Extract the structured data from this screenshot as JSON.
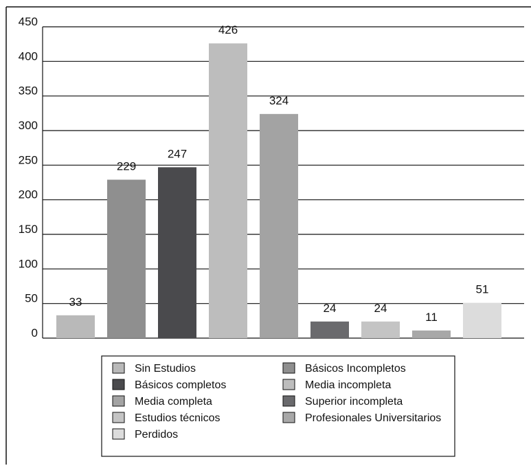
{
  "chart_data": {
    "type": "bar",
    "title": "",
    "xlabel": "",
    "ylabel": "",
    "ylim": [
      0,
      450
    ],
    "yticks": [
      0,
      50,
      100,
      150,
      200,
      250,
      300,
      350,
      400,
      450
    ],
    "grid": true,
    "legend_position": "bottom",
    "categories": [
      "Sin Estudios",
      "Básicos Incompletos",
      "Básicos completos",
      "Media incompleta",
      "Media completa",
      "Superior incompleta",
      "Estudios técnicos",
      "Profesionales Universitarios",
      "Perdidos"
    ],
    "values": [
      33,
      229,
      247,
      426,
      324,
      24,
      24,
      11,
      51
    ],
    "colors": [
      "#b9b9b9",
      "#8f8f8f",
      "#4a4a4d",
      "#bdbdbd",
      "#a3a3a3",
      "#6a6a6d",
      "#c4c4c4",
      "#a8a8a8",
      "#dcdcdc"
    ],
    "legend": [
      "Sin Estudios",
      "Básicos Incompletos",
      "Básicos completos",
      "Media incompleta",
      "Media completa",
      "Superior incompleta",
      "Estudios técnicos",
      "Profesionales Universitarios",
      "Perdidos"
    ]
  }
}
